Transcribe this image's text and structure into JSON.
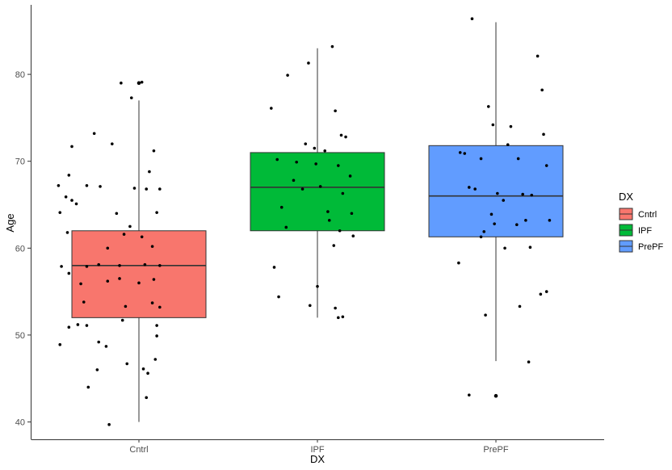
{
  "chart_data": {
    "type": "box",
    "xlabel": "DX",
    "ylabel": "Age",
    "ylim": [
      38,
      88
    ],
    "yticks": [
      40,
      50,
      60,
      70,
      80
    ],
    "categories": [
      "Cntrl",
      "IPF",
      "PrePF"
    ],
    "legend": {
      "title": "DX",
      "position": "right",
      "entries": [
        "Cntrl",
        "IPF",
        "PrePF"
      ]
    },
    "colors": {
      "Cntrl": "#F8766D",
      "IPF": "#00BA38",
      "PrePF": "#619CFF"
    },
    "grid": false,
    "boxes": [
      {
        "category": "Cntrl",
        "min": 40,
        "q1": 52,
        "median": 58,
        "q3": 62,
        "max": 77,
        "outliers": [
          79
        ]
      },
      {
        "category": "IPF",
        "min": 52,
        "q1": 62,
        "median": 67,
        "q3": 71,
        "max": 83,
        "outliers": []
      },
      {
        "category": "PrePF",
        "min": 47,
        "q1": 61.3,
        "median": 66,
        "q3": 71.8,
        "max": 86,
        "outliers": [
          43
        ]
      }
    ],
    "points": {
      "Cntrl": [
        [
          -0.12,
          79.0
        ],
        [
          0.02,
          79.1
        ],
        [
          -0.05,
          77.3
        ],
        [
          -0.3,
          73.2
        ],
        [
          -0.18,
          72.0
        ],
        [
          -0.45,
          71.7
        ],
        [
          0.1,
          71.2
        ],
        [
          -0.47,
          68.4
        ],
        [
          0.07,
          68.8
        ],
        [
          -0.54,
          67.2
        ],
        [
          -0.35,
          67.2
        ],
        [
          -0.26,
          67.1
        ],
        [
          0.05,
          66.8
        ],
        [
          -0.03,
          66.9
        ],
        [
          0.14,
          66.8
        ],
        [
          -0.49,
          65.9
        ],
        [
          -0.45,
          65.5
        ],
        [
          -0.42,
          65.1
        ],
        [
          -0.53,
          64.1
        ],
        [
          -0.15,
          64.0
        ],
        [
          0.12,
          64.1
        ],
        [
          -0.06,
          62.5
        ],
        [
          -0.48,
          61.8
        ],
        [
          -0.1,
          61.6
        ],
        [
          0.02,
          61.3
        ],
        [
          -0.21,
          60.0
        ],
        [
          0.09,
          60.2
        ],
        [
          -0.52,
          57.9
        ],
        [
          -0.35,
          57.9
        ],
        [
          -0.27,
          58.1
        ],
        [
          -0.13,
          58.0
        ],
        [
          0.04,
          58.1
        ],
        [
          0.14,
          58.0
        ],
        [
          -0.47,
          57.1
        ],
        [
          -0.39,
          55.9
        ],
        [
          -0.21,
          56.2
        ],
        [
          -0.13,
          56.5
        ],
        [
          0.0,
          56.0
        ],
        [
          0.1,
          56.4
        ],
        [
          -0.37,
          53.8
        ],
        [
          -0.09,
          53.3
        ],
        [
          0.09,
          53.7
        ],
        [
          0.14,
          53.2
        ],
        [
          -0.47,
          50.9
        ],
        [
          -0.41,
          51.2
        ],
        [
          -0.35,
          51.1
        ],
        [
          -0.11,
          51.7
        ],
        [
          0.12,
          51.1
        ],
        [
          -0.53,
          48.9
        ],
        [
          -0.27,
          49.2
        ],
        [
          -0.22,
          48.7
        ],
        [
          0.12,
          49.9
        ],
        [
          -0.08,
          46.7
        ],
        [
          -0.28,
          46.0
        ],
        [
          0.03,
          46.1
        ],
        [
          0.06,
          45.6
        ],
        [
          0.11,
          47.2
        ],
        [
          -0.34,
          44.0
        ],
        [
          0.05,
          42.8
        ],
        [
          -0.2,
          39.7
        ]
      ],
      "IPF": [
        [
          0.1,
          83.2
        ],
        [
          -0.06,
          81.3
        ],
        [
          -0.2,
          79.9
        ],
        [
          -0.31,
          76.1
        ],
        [
          0.12,
          75.8
        ],
        [
          0.16,
          73.0
        ],
        [
          0.19,
          72.8
        ],
        [
          -0.08,
          72.0
        ],
        [
          -0.02,
          71.5
        ],
        [
          0.05,
          71.2
        ],
        [
          -0.27,
          70.2
        ],
        [
          -0.14,
          69.9
        ],
        [
          -0.01,
          69.7
        ],
        [
          0.14,
          69.5
        ],
        [
          0.22,
          68.3
        ],
        [
          -0.16,
          67.8
        ],
        [
          0.02,
          67.1
        ],
        [
          -0.1,
          66.8
        ],
        [
          0.17,
          66.3
        ],
        [
          -0.24,
          64.7
        ],
        [
          0.07,
          64.2
        ],
        [
          0.23,
          64.0
        ],
        [
          0.08,
          63.2
        ],
        [
          -0.21,
          62.4
        ],
        [
          0.15,
          62.0
        ],
        [
          0.24,
          61.4
        ],
        [
          0.11,
          60.3
        ],
        [
          -0.29,
          57.8
        ],
        [
          0.0,
          55.6
        ],
        [
          -0.26,
          54.4
        ],
        [
          -0.05,
          53.4
        ],
        [
          0.12,
          53.1
        ],
        [
          0.17,
          52.1
        ],
        [
          0.14,
          52.0
        ]
      ],
      "PrePF": [
        [
          -0.16,
          86.4
        ],
        [
          0.28,
          82.1
        ],
        [
          0.31,
          78.2
        ],
        [
          -0.05,
          76.3
        ],
        [
          -0.02,
          74.2
        ],
        [
          0.1,
          74.0
        ],
        [
          0.32,
          73.1
        ],
        [
          -0.24,
          71.0
        ],
        [
          0.08,
          71.9
        ],
        [
          -0.1,
          70.3
        ],
        [
          0.15,
          70.3
        ],
        [
          -0.21,
          70.9
        ],
        [
          0.34,
          69.5
        ],
        [
          -0.18,
          67.0
        ],
        [
          -0.14,
          66.8
        ],
        [
          0.01,
          66.3
        ],
        [
          0.24,
          66.1
        ],
        [
          0.18,
          66.2
        ],
        [
          0.05,
          65.5
        ],
        [
          -0.03,
          63.9
        ],
        [
          0.2,
          63.2
        ],
        [
          0.36,
          63.2
        ],
        [
          -0.01,
          62.8
        ],
        [
          0.14,
          62.7
        ],
        [
          -0.08,
          61.9
        ],
        [
          -0.1,
          61.3
        ],
        [
          0.23,
          60.1
        ],
        [
          0.06,
          60.0
        ],
        [
          -0.25,
          58.3
        ],
        [
          0.34,
          55.0
        ],
        [
          0.3,
          54.7
        ],
        [
          0.16,
          53.3
        ],
        [
          -0.07,
          52.3
        ],
        [
          0.22,
          46.9
        ],
        [
          -0.18,
          43.1
        ]
      ]
    }
  }
}
